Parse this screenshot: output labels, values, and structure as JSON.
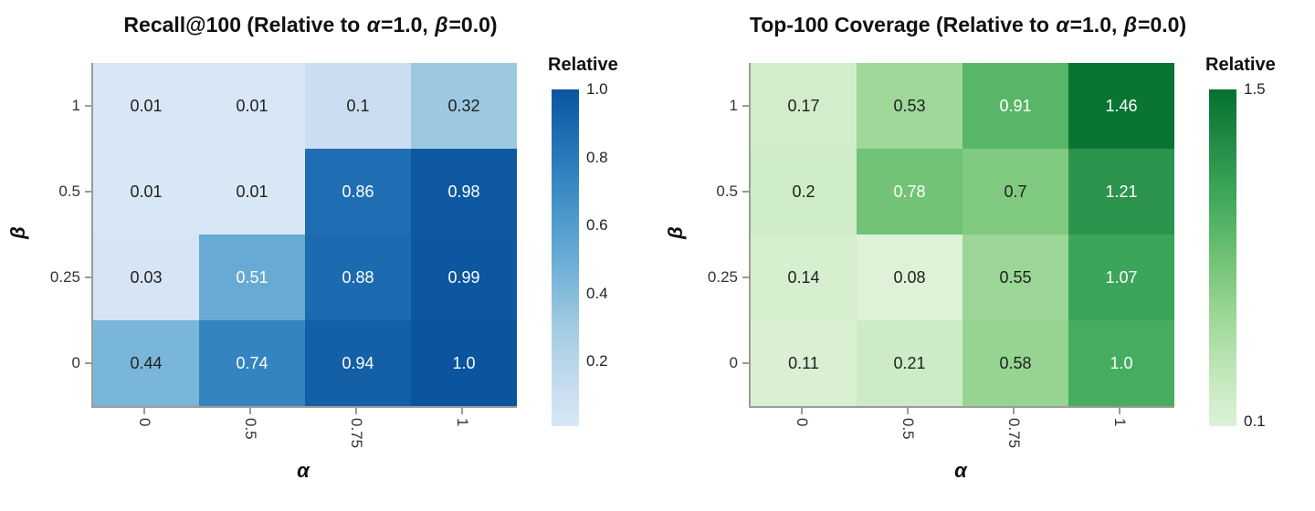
{
  "page": {
    "background": "#ffffff"
  },
  "chart_data": [
    {
      "type": "heatmap",
      "title": "Recall@100 (Relative to α=1.0, β=0.0)",
      "xlabel": "α",
      "ylabel": "β",
      "x_ticks": [
        "0",
        "0.5",
        "0.75",
        "1"
      ],
      "y_ticks": [
        "1",
        "0.5",
        "0.25",
        "0"
      ],
      "values": [
        [
          0.01,
          0.01,
          0.1,
          0.32
        ],
        [
          0.01,
          0.01,
          0.86,
          0.98
        ],
        [
          0.03,
          0.51,
          0.88,
          0.99
        ],
        [
          0.44,
          0.74,
          0.94,
          1.0
        ]
      ],
      "cell_labels": [
        [
          "0.01",
          "0.01",
          "0.1",
          "0.32"
        ],
        [
          "0.01",
          "0.01",
          "0.86",
          "0.98"
        ],
        [
          "0.03",
          "0.51",
          "0.88",
          "0.99"
        ],
        [
          "0.44",
          "0.74",
          "0.94",
          "1.0"
        ]
      ],
      "vmin": 0.01,
      "vmax": 1.0,
      "colormap": [
        "#f7fbff",
        "#deebf7",
        "#c6dbef",
        "#9ecae1",
        "#6baed6",
        "#4292c6",
        "#2171b5",
        "#08519c",
        "#08306b"
      ],
      "colormap_range": [
        0.16,
        0.86
      ],
      "colorbar_title": "Relative",
      "colorbar_ticks": [
        "1.0",
        "0.8",
        "0.6",
        "0.4",
        "0.2"
      ],
      "legend_position": "right",
      "grid": false
    },
    {
      "type": "heatmap",
      "title": "Top-100 Coverage (Relative to α=1.0, β=0.0)",
      "xlabel": "α",
      "ylabel": "β",
      "x_ticks": [
        "0",
        "0.5",
        "0.75",
        "1"
      ],
      "y_ticks": [
        "1",
        "0.5",
        "0.25",
        "0"
      ],
      "values": [
        [
          0.17,
          0.53,
          0.91,
          1.46
        ],
        [
          0.2,
          0.78,
          0.7,
          1.21
        ],
        [
          0.14,
          0.08,
          0.55,
          1.07
        ],
        [
          0.11,
          0.21,
          0.58,
          1.0
        ]
      ],
      "cell_labels": [
        [
          "0.17",
          "0.53",
          "0.91",
          "1.46"
        ],
        [
          "0.2",
          "0.78",
          "0.7",
          "1.21"
        ],
        [
          "0.14",
          "0.08",
          "0.55",
          "1.07"
        ],
        [
          "0.11",
          "0.21",
          "0.58",
          "1.0"
        ]
      ],
      "vmin": 0.08,
      "vmax": 1.5,
      "colormap": [
        "#f7fcf5",
        "#e5f5e0",
        "#c7e9c0",
        "#a1d99b",
        "#74c476",
        "#41ab5d",
        "#238b45",
        "#006d2c",
        "#00441b"
      ],
      "colormap_range": [
        0.16,
        0.86
      ],
      "colorbar_title": "Relative",
      "colorbar_ticks": [
        "1.5",
        "0.1"
      ],
      "legend_position": "right",
      "grid": false
    }
  ]
}
